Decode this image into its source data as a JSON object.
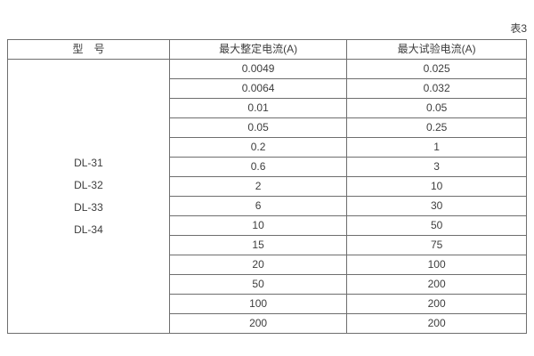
{
  "caption": "表3",
  "table": {
    "headers": [
      "型　号",
      "最大整定电流(A)",
      "最大试验电流(A)"
    ],
    "models": [
      "DL-31",
      "DL-32",
      "DL-33",
      "DL-34"
    ],
    "rows": [
      {
        "setting": "0.0049",
        "test": "0.025"
      },
      {
        "setting": "0.0064",
        "test": "0.032"
      },
      {
        "setting": "0.01",
        "test": "0.05"
      },
      {
        "setting": "0.05",
        "test": "0.25"
      },
      {
        "setting": "0.2",
        "test": "1"
      },
      {
        "setting": "0.6",
        "test": "3"
      },
      {
        "setting": "2",
        "test": "10"
      },
      {
        "setting": "6",
        "test": "30"
      },
      {
        "setting": "10",
        "test": "50"
      },
      {
        "setting": "15",
        "test": "75"
      },
      {
        "setting": "20",
        "test": "100"
      },
      {
        "setting": "50",
        "test": "200"
      },
      {
        "setting": "100",
        "test": "200"
      },
      {
        "setting": "200",
        "test": "200"
      }
    ]
  },
  "colors": {
    "border": "#6e6e6e",
    "text": "#3d3d3d",
    "background": "#ffffff"
  }
}
